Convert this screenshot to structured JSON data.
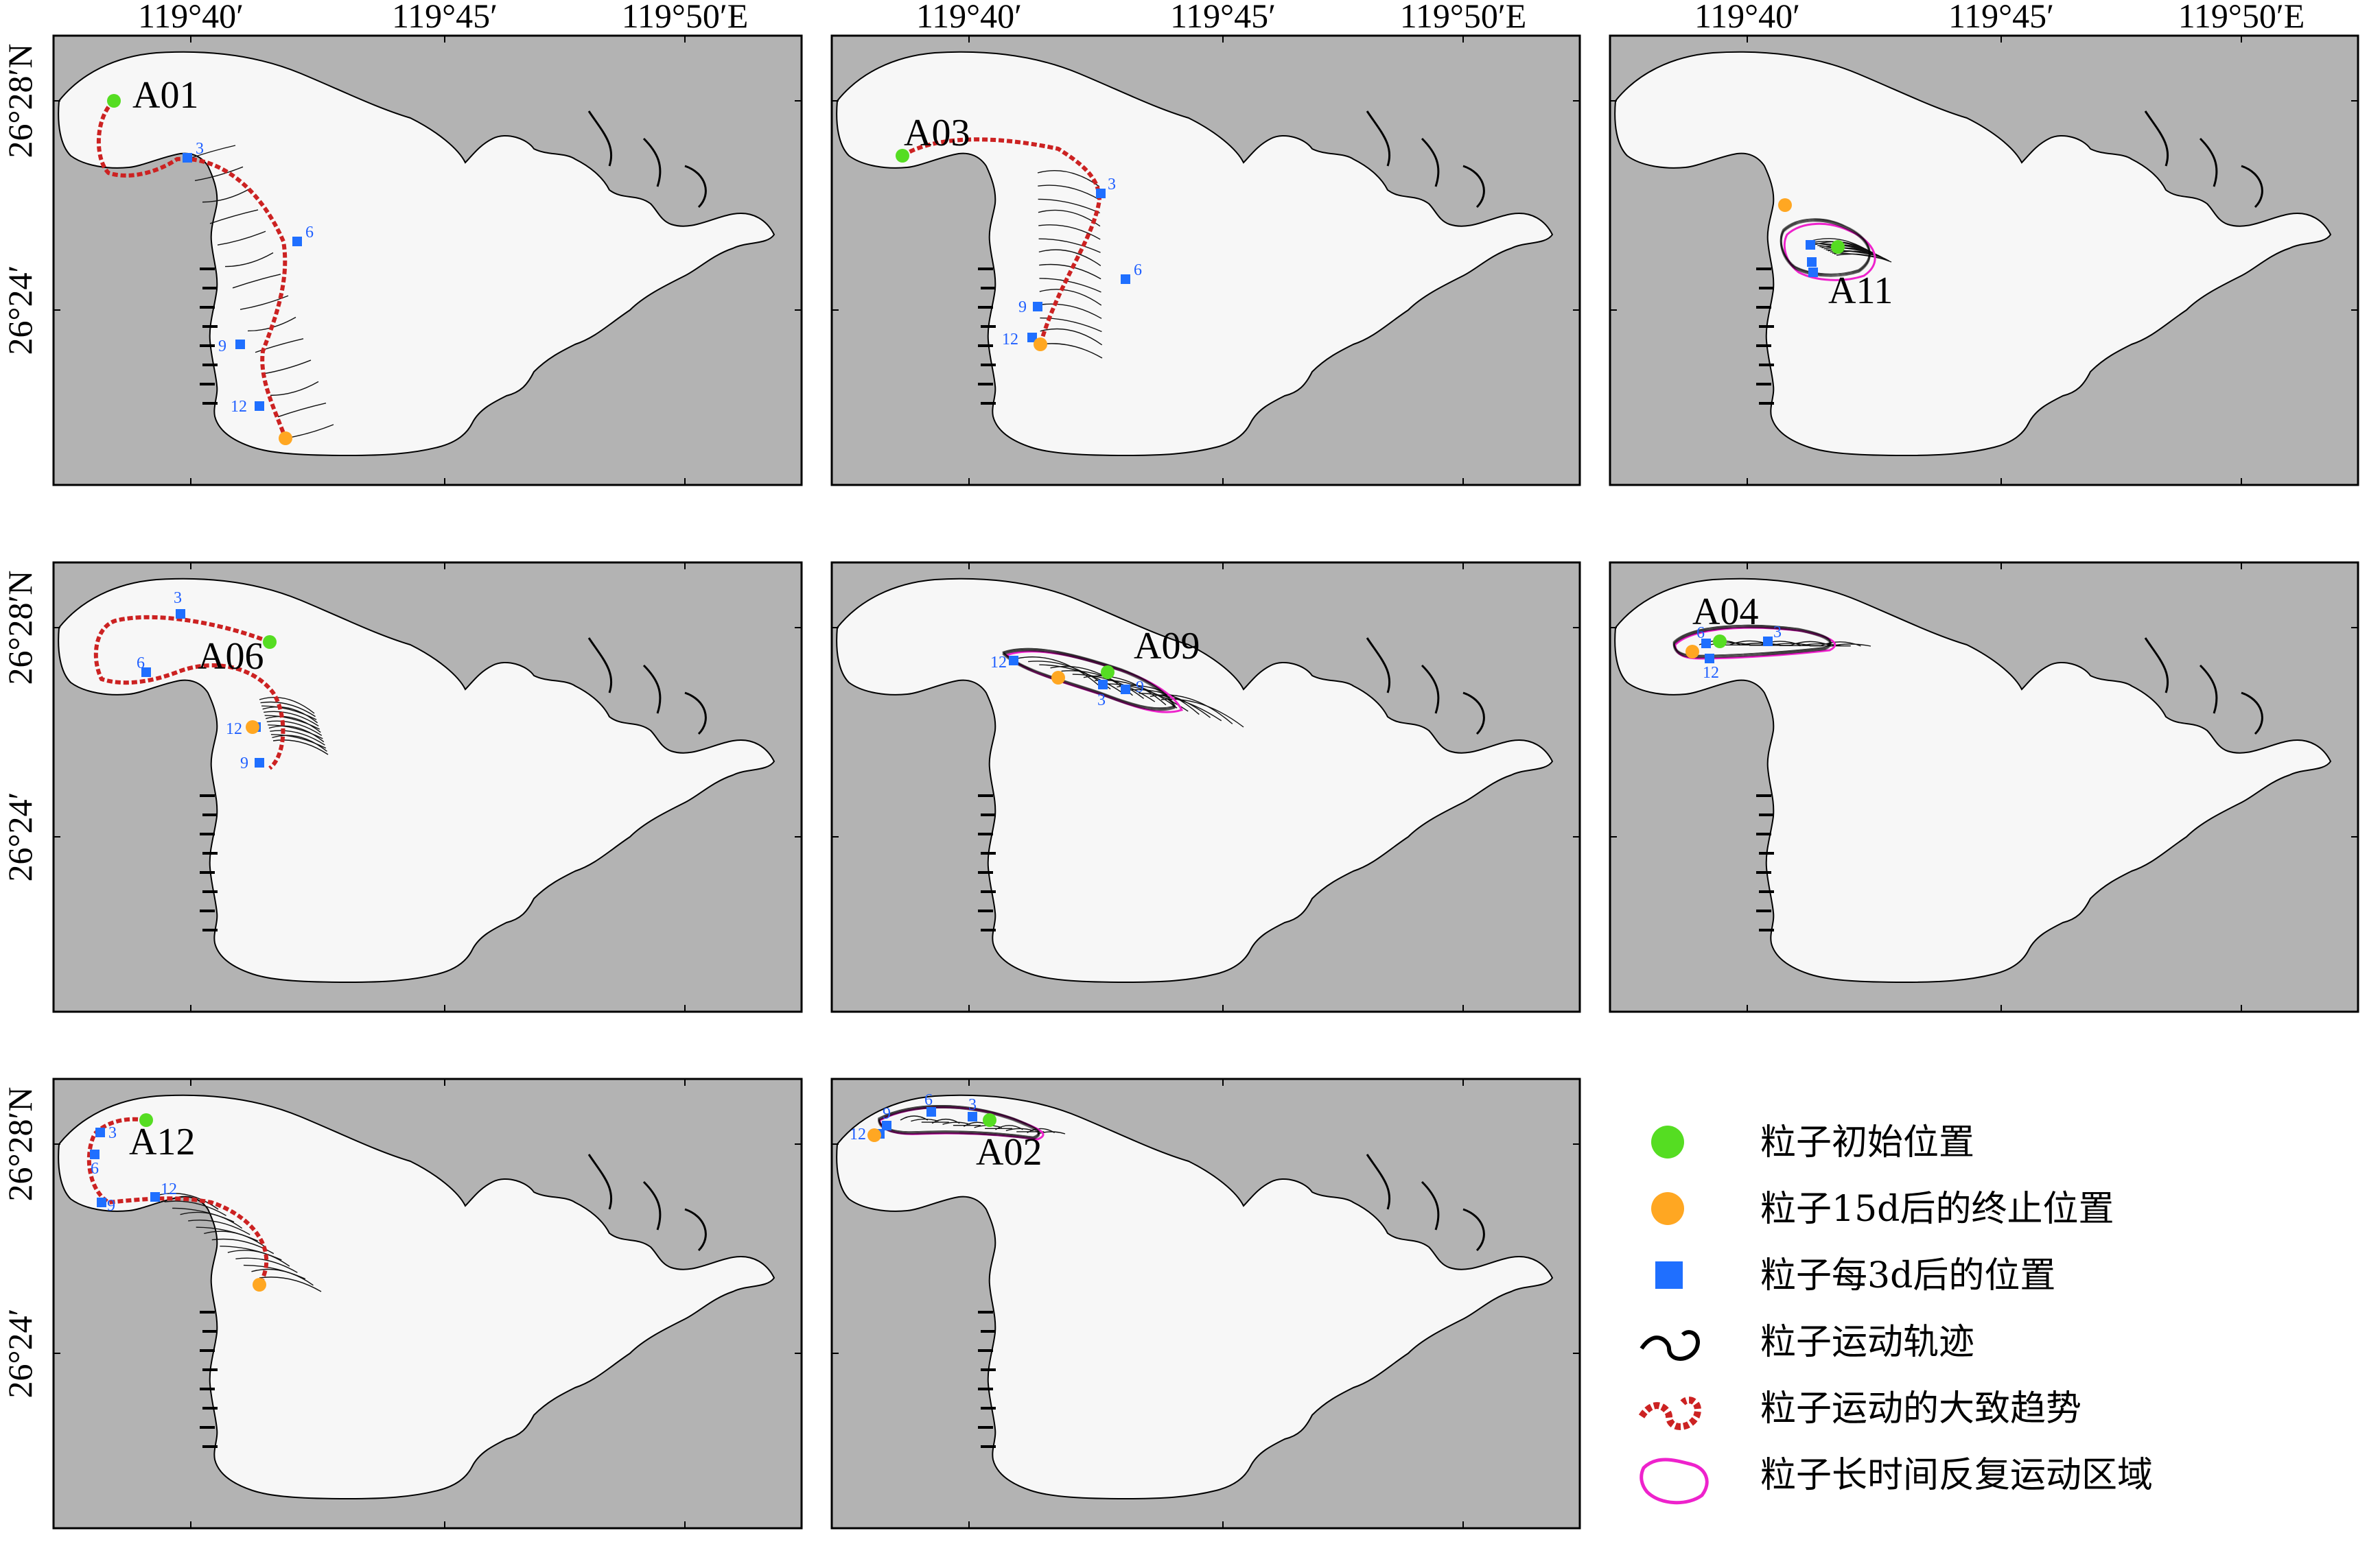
{
  "longitude_ticks": [
    "119°40′",
    "119°45′",
    "119°50′E"
  ],
  "latitude_ticks": [
    "26°28′N",
    "26°24′",
    "26°24′"
  ],
  "latitude_ticks_middle": [
    "26°28′N",
    "26°24′"
  ],
  "latitude_ticks_bottom": [
    "26°28′N",
    "26°24′"
  ],
  "panels": [
    {
      "label": "A01",
      "steps": [
        "3",
        "6",
        "9",
        "12"
      ]
    },
    {
      "label": "A03",
      "steps": [
        "3",
        "6",
        "9",
        "12"
      ]
    },
    {
      "label": "A11",
      "steps": []
    },
    {
      "label": "A06",
      "steps": [
        "3",
        "6",
        "12",
        "9"
      ]
    },
    {
      "label": "A09",
      "steps": [
        "12",
        "9",
        "3",
        "6"
      ]
    },
    {
      "label": "A04",
      "steps": [
        "6",
        "3",
        "12"
      ]
    },
    {
      "label": "A12",
      "steps": [
        "3",
        "6",
        "9",
        "12"
      ]
    },
    {
      "label": "A02",
      "steps": [
        "9",
        "6",
        "3",
        "12"
      ]
    }
  ],
  "legend": [
    {
      "icon": "green-dot-icon",
      "text": "粒子初始位置"
    },
    {
      "icon": "orange-dot-icon",
      "text": "粒子15d后的终止位置"
    },
    {
      "icon": "blue-square-icon",
      "text": "粒子每3d后的位置"
    },
    {
      "icon": "black-curve-icon",
      "text": "粒子运动轨迹"
    },
    {
      "icon": "red-dashed-curve-icon",
      "text": "粒子运动的大致趋势"
    },
    {
      "icon": "magenta-polygon-icon",
      "text": "粒子长时间反复运动区域"
    }
  ],
  "colors": {
    "land": "#b3b3b3",
    "water": "#f7f7f7",
    "start": "#55dd22",
    "end": "#ffa722",
    "marker": "#1f6fff",
    "trend": "#cc2222",
    "region": "#ee22cc"
  }
}
